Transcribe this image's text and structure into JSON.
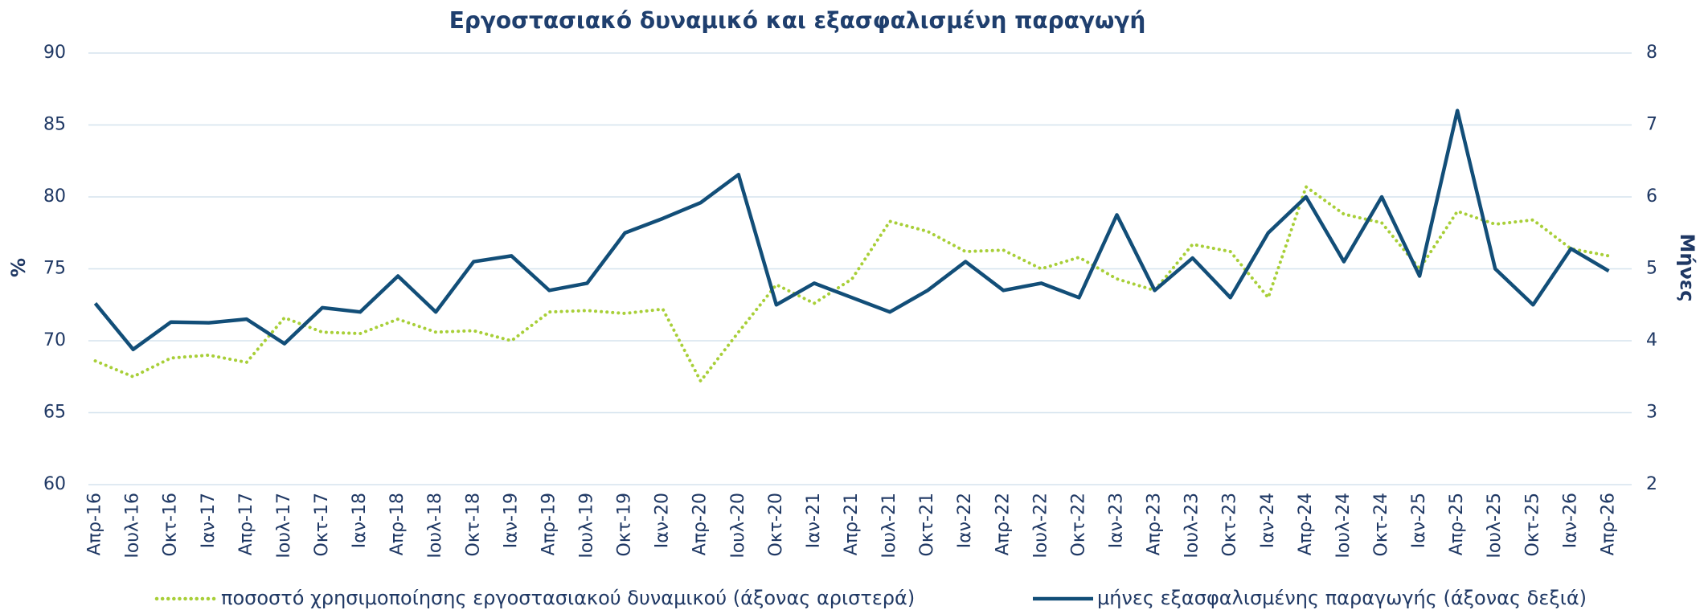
{
  "chart_data": {
    "type": "line",
    "title": "Εργοστασιακό δυναμικό και εξασφαλισμένη παραγωγή",
    "y_label": "%",
    "y2_label": "Μήνες",
    "categories": [
      "Απρ-16",
      "Ιουλ-16",
      "Οκτ-16",
      "Ιαν-17",
      "Απρ-17",
      "Ιουλ-17",
      "Οκτ-17",
      "Ιαν-18",
      "Απρ-18",
      "Ιουλ-18",
      "Οκτ-18",
      "Ιαν-19",
      "Απρ-19",
      "Ιουλ-19",
      "Οκτ-19",
      "Ιαν-20",
      "Απρ-20",
      "Ιουλ-20",
      "Οκτ-20",
      "Ιαν-21",
      "Απρ-21",
      "Ιουλ-21",
      "Οκτ-21",
      "Ιαν-22",
      "Απρ-22",
      "Ιουλ-22",
      "Οκτ-22",
      "Ιαν-23",
      "Απρ-23",
      "Ιουλ-23",
      "Οκτ-23",
      "Ιαν-24",
      "Απρ-24",
      "Ιουλ-24",
      "Οκτ-24",
      "Ιαν-25",
      "Απρ-25",
      "Ιουλ-25",
      "Οκτ-25",
      "Ιαν-26",
      "Απρ-26"
    ],
    "series": [
      {
        "name": "ποσοστό χρησιμοποίησης εργοστασιακού δυναμικού (άξονας αριστερά)",
        "color": "#a8cf38",
        "dash": "dotted",
        "values": [
          68.6,
          67.5,
          68.8,
          69.0,
          68.5,
          71.6,
          70.6,
          70.5,
          71.5,
          70.6,
          70.7,
          70.0,
          72.0,
          72.1,
          71.9,
          72.2,
          67.2,
          70.6,
          73.9,
          72.6,
          74.3,
          78.3,
          77.6,
          76.2,
          76.3,
          75.0,
          75.8,
          74.3,
          73.5,
          76.7,
          76.2,
          73.0,
          80.7,
          78.8,
          78.2,
          75.0,
          79.0,
          78.1,
          78.4,
          76.4,
          75.9
        ]
      },
      {
        "name": "μήνες εξασφαλισμένης παραγωγής (άξονας δεξιά)",
        "color": "#124e78",
        "axis": "y2",
        "values": [
          4.52,
          3.88,
          4.26,
          4.25,
          4.3,
          3.96,
          4.46,
          4.4,
          4.9,
          4.4,
          5.1,
          5.18,
          4.7,
          4.8,
          5.5,
          5.7,
          5.92,
          6.31,
          4.5,
          4.8,
          4.6,
          4.4,
          4.7,
          5.1,
          4.7,
          4.8,
          4.6,
          5.75,
          4.7,
          5.15,
          4.6,
          5.5,
          6.0,
          5.1,
          6.0,
          4.9,
          7.2,
          5.0,
          4.5,
          5.28,
          4.97
        ]
      }
    ],
    "ylim": [
      60,
      90
    ],
    "yticks": [
      60,
      65,
      70,
      75,
      80,
      85,
      90
    ],
    "y2lim": [
      2,
      8
    ],
    "y2ticks": [
      2,
      3,
      4,
      5,
      6,
      7,
      8
    ],
    "grid": true,
    "legend": "bottom"
  }
}
